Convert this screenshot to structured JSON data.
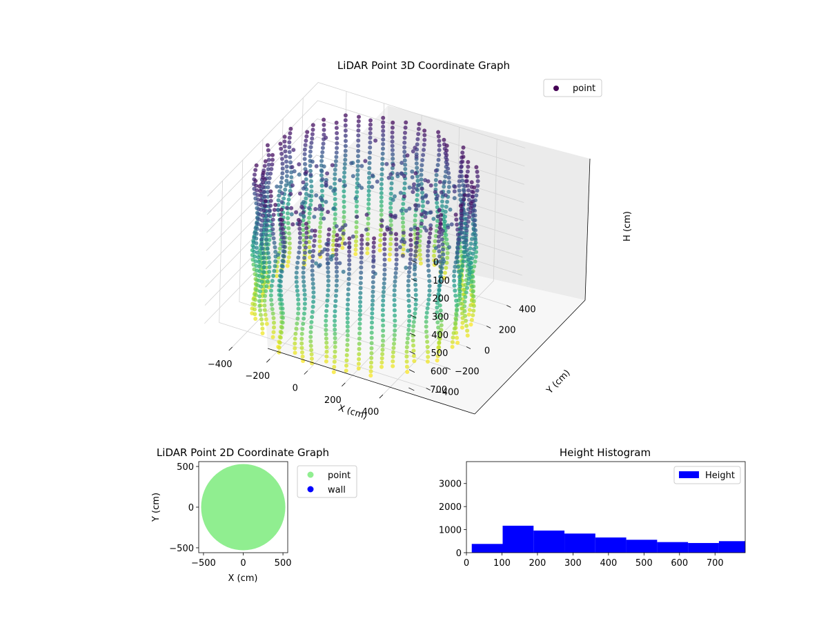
{
  "chart_data": [
    {
      "type": "scatter3d",
      "title": "LiDAR Point 3D Coordinate Graph",
      "xlabel": "X (cm)",
      "ylabel": "Y (cm)",
      "zlabel": "H (cm)",
      "xticks": [
        -400,
        -200,
        0,
        200,
        400
      ],
      "yticks": [
        -400,
        -200,
        0,
        200,
        400
      ],
      "zticks": [
        0,
        100,
        200,
        300,
        400,
        500,
        600,
        700
      ],
      "xlim": [
        -550,
        550
      ],
      "ylim": [
        -550,
        550
      ],
      "zlim": [
        780,
        0
      ],
      "zaxis_inverted": true,
      "colormap": "viridis",
      "legend": {
        "entries": [
          "point"
        ],
        "placement": "top-right"
      },
      "grid": true,
      "structure": {
        "shape": "cylindrical wall",
        "radius_cm": 520,
        "height_range_cm": [
          20,
          780
        ],
        "wall_columns": 56
      }
    },
    {
      "type": "scatter",
      "title": "LiDAR Point 2D Coordinate Graph",
      "xlabel": "X (cm)",
      "ylabel": "Y (cm)",
      "xticks": [
        -500,
        0,
        500
      ],
      "yticks": [
        -500,
        0,
        500
      ],
      "xlim": [
        -560,
        560
      ],
      "ylim": [
        -560,
        560
      ],
      "series": [
        {
          "name": "point",
          "color": "#90ee90",
          "shape": "disk",
          "radius": 530
        },
        {
          "name": "wall",
          "color": "#0000ff",
          "points": []
        }
      ],
      "legend": {
        "placement": "outside-right"
      }
    },
    {
      "type": "bar",
      "title": "Height Histogram",
      "bins": [
        {
          "start": 15,
          "end": 102,
          "count": 380
        },
        {
          "start": 102,
          "end": 189,
          "count": 1170
        },
        {
          "start": 189,
          "end": 276,
          "count": 960
        },
        {
          "start": 276,
          "end": 363,
          "count": 830
        },
        {
          "start": 363,
          "end": 450,
          "count": 660
        },
        {
          "start": 450,
          "end": 537,
          "count": 560
        },
        {
          "start": 537,
          "end": 624,
          "count": 460
        },
        {
          "start": 624,
          "end": 711,
          "count": 420
        },
        {
          "start": 711,
          "end": 798,
          "count": 500
        }
      ],
      "xticks": [
        0,
        100,
        200,
        300,
        400,
        500,
        600,
        700
      ],
      "yticks": [
        0,
        1000,
        2000,
        3000
      ],
      "xlim": [
        0,
        785
      ],
      "ylim": [
        0,
        3950
      ],
      "color": "#0000ff",
      "legend": {
        "entries": [
          "Height"
        ],
        "placement": "top-right"
      }
    }
  ]
}
